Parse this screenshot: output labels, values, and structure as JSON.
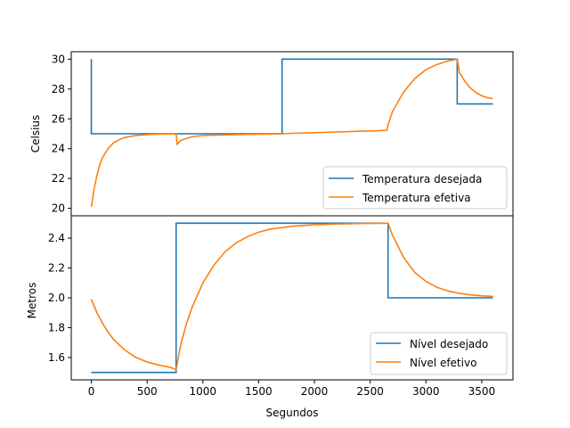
{
  "colors": {
    "blue": "#1f77b4",
    "orange": "#ff7f0e"
  },
  "chart_data": [
    {
      "type": "line",
      "title": "",
      "xlabel": "",
      "ylabel": "Celsius",
      "xlim": [
        -180,
        3780
      ],
      "ylim": [
        19.5,
        30.5
      ],
      "yticks": [
        20,
        22,
        24,
        26,
        28,
        30
      ],
      "grid": false,
      "legend_position": "lower-right",
      "series": [
        {
          "name": "Temperatura desejada",
          "color": "#1f77b4",
          "step": true,
          "x": [
            0,
            0,
            1710,
            1710,
            3280,
            3280,
            3600
          ],
          "y": [
            30,
            25,
            25,
            30,
            30,
            27,
            27
          ]
        },
        {
          "name": "Temperatura efetiva",
          "color": "#ff7f0e",
          "x": [
            0,
            25,
            50,
            75,
            100,
            150,
            200,
            250,
            300,
            400,
            500,
            600,
            700,
            760,
            770,
            800,
            900,
            1000,
            1200,
            1400,
            1600,
            1700,
            1800,
            2000,
            2200,
            2400,
            2550,
            2650,
            2660,
            2700,
            2800,
            2900,
            3000,
            3100,
            3200,
            3260,
            3280,
            3300,
            3350,
            3400,
            3450,
            3500,
            3550,
            3600
          ],
          "y": [
            20.1,
            21.3,
            22.2,
            22.9,
            23.4,
            24.0,
            24.4,
            24.6,
            24.75,
            24.88,
            24.94,
            24.97,
            24.98,
            24.99,
            24.3,
            24.55,
            24.8,
            24.88,
            24.93,
            24.96,
            24.98,
            25.0,
            25.03,
            25.07,
            25.12,
            25.17,
            25.2,
            25.23,
            25.6,
            26.5,
            27.8,
            28.7,
            29.3,
            29.65,
            29.88,
            29.97,
            30.0,
            29.1,
            28.5,
            28.05,
            27.75,
            27.55,
            27.42,
            27.35
          ]
        }
      ]
    },
    {
      "type": "line",
      "title": "",
      "xlabel": "Segundos",
      "ylabel": "Metros",
      "xlim": [
        -180,
        3780
      ],
      "ylim": [
        1.45,
        2.55
      ],
      "xticks": [
        0,
        500,
        1000,
        1500,
        2000,
        2500,
        3000,
        3500
      ],
      "yticks": [
        1.6,
        1.8,
        2.0,
        2.2,
        2.4
      ],
      "grid": false,
      "legend_position": "lower-right",
      "series": [
        {
          "name": "Nível desejado",
          "color": "#1f77b4",
          "step": true,
          "x": [
            0,
            760,
            760,
            2660,
            2660,
            3600
          ],
          "y": [
            1.5,
            1.5,
            2.5,
            2.5,
            2.0,
            2.0
          ],
          "unit_note": ""
        },
        {
          "name": "Nível efetivo",
          "color": "#ff7f0e",
          "x": [
            0,
            50,
            100,
            150,
            200,
            300,
            400,
            500,
            600,
            700,
            760,
            800,
            850,
            900,
            1000,
            1100,
            1200,
            1300,
            1400,
            1500,
            1600,
            1800,
            2000,
            2200,
            2400,
            2600,
            2660,
            2700,
            2800,
            2900,
            3000,
            3100,
            3200,
            3300,
            3400,
            3500,
            3600
          ],
          "y": [
            1.99,
            1.9,
            1.83,
            1.77,
            1.72,
            1.65,
            1.6,
            1.57,
            1.55,
            1.535,
            1.52,
            1.68,
            1.82,
            1.93,
            2.1,
            2.22,
            2.31,
            2.37,
            2.41,
            2.44,
            2.46,
            2.48,
            2.49,
            2.495,
            2.498,
            2.5,
            2.5,
            2.42,
            2.27,
            2.17,
            2.11,
            2.07,
            2.045,
            2.03,
            2.02,
            2.013,
            2.01
          ]
        }
      ]
    }
  ]
}
